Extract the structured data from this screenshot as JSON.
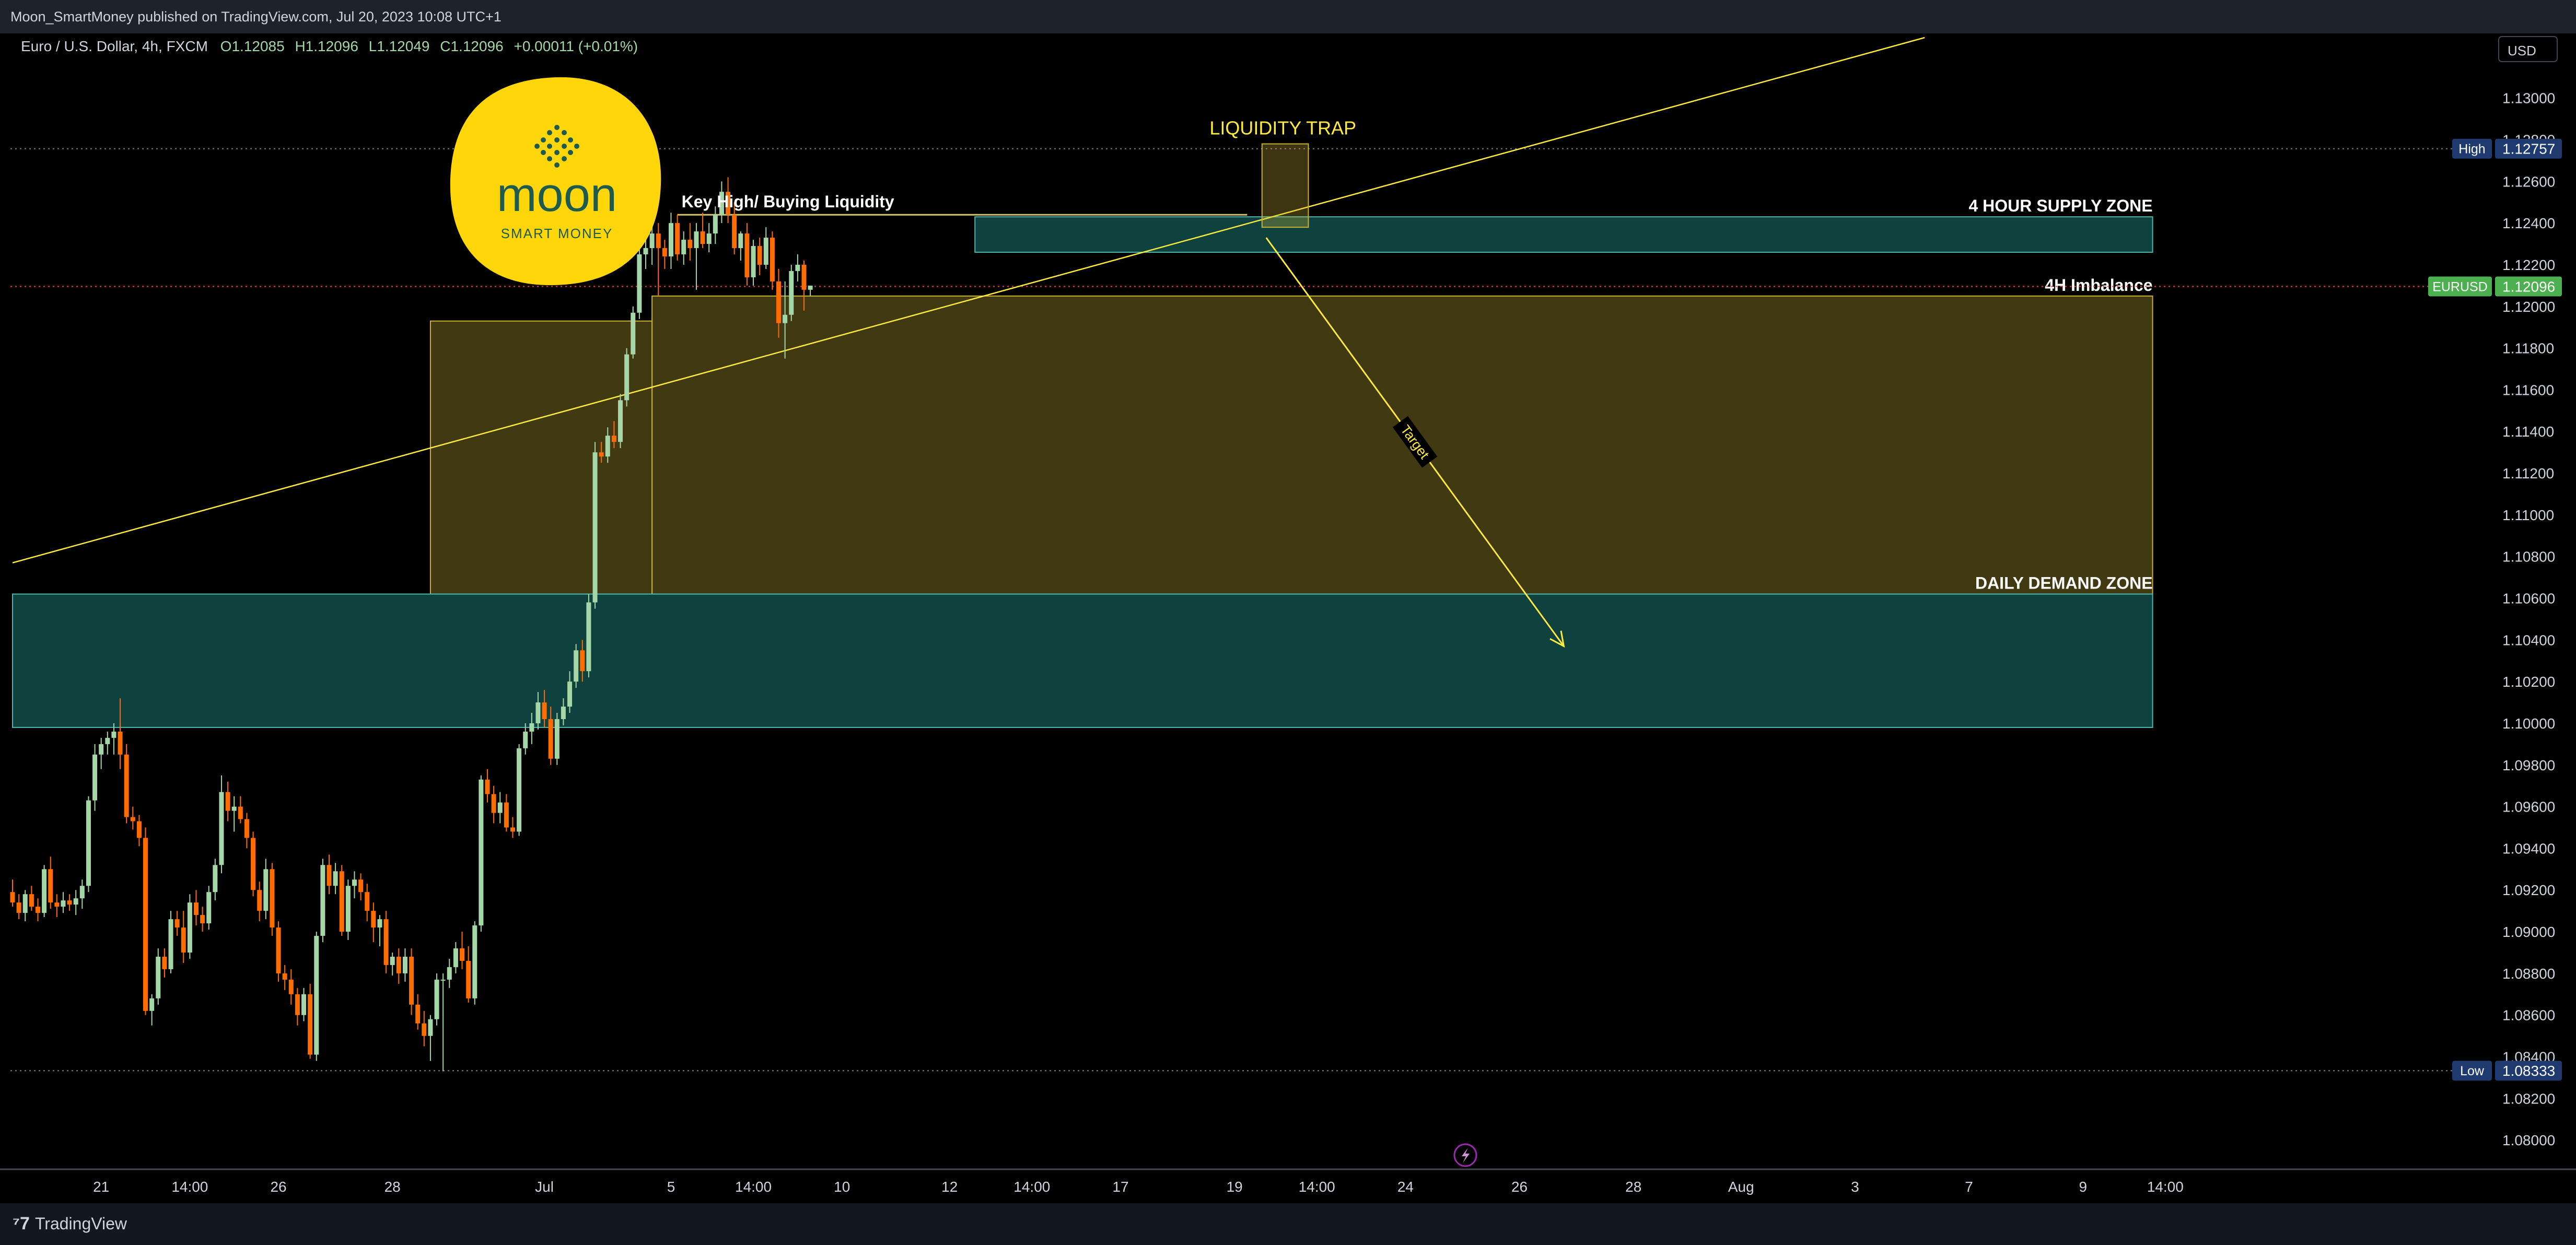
{
  "header": {
    "publisher_text": "Moon_SmartMoney published on TradingView.com, Jul 20, 2023 10:08 UTC+1"
  },
  "footer": {
    "brand": "TradingView",
    "brand_icon": "tradingview-logo-icon"
  },
  "logo": {
    "word": "moon",
    "tagline": "SMART MONEY",
    "background": "#ffd60a",
    "text_color": "#1f5a4f"
  },
  "colors": {
    "bull_candle": "#a5d6a7",
    "bear_candle": "#ff6d00",
    "supply_zone": "#26a69a",
    "demand_zone": "#26a69a",
    "imbalance_zone": "#c9b037",
    "annotation": "#ffeb3b"
  },
  "chart_data": {
    "type": "candlestick",
    "symbol_info": {
      "name": "Euro / U.S. Dollar, 4h, FXCM",
      "open": "O1.12085",
      "high": "H1.12096",
      "low": "L1.12049",
      "close": "C1.12096",
      "change": "+0.00011 (+0.01%)"
    },
    "currency": "USD",
    "y_ticks": [
      "1.13000",
      "1.12800",
      "1.12600",
      "1.12400",
      "1.12200",
      "1.12000",
      "1.11800",
      "1.11600",
      "1.11400",
      "1.11200",
      "1.11000",
      "1.10800",
      "1.10600",
      "1.10400",
      "1.10200",
      "1.10000",
      "1.09800",
      "1.09600",
      "1.09400",
      "1.09200",
      "1.09000",
      "1.08800",
      "1.08600",
      "1.08400",
      "1.08200",
      "1.08000"
    ],
    "y_tick_values": [
      1.13,
      1.128,
      1.126,
      1.124,
      1.122,
      1.12,
      1.118,
      1.116,
      1.114,
      1.112,
      1.11,
      1.108,
      1.106,
      1.104,
      1.102,
      1.1,
      1.098,
      1.096,
      1.094,
      1.092,
      1.09,
      1.088,
      1.086,
      1.084,
      1.082,
      1.08
    ],
    "ylim": [
      1.0786,
      1.1331
    ],
    "x_ticks": [
      {
        "label": "21",
        "i": 14
      },
      {
        "label": "14:00",
        "i": 28
      },
      {
        "label": "26",
        "i": 42
      },
      {
        "label": "28",
        "i": 60
      },
      {
        "label": "Jul",
        "i": 84
      },
      {
        "label": "5",
        "i": 104
      },
      {
        "label": "14:00",
        "i": 117
      },
      {
        "label": "10",
        "i": 131
      },
      {
        "label": "12",
        "i": 148
      },
      {
        "label": "14:00",
        "i": 161
      },
      {
        "label": "17",
        "i": 175
      },
      {
        "label": "19",
        "i": 193
      },
      {
        "label": "14:00",
        "i": 206
      },
      {
        "label": "24",
        "i": 220
      },
      {
        "label": "26",
        "i": 238
      },
      {
        "label": "28",
        "i": 256
      },
      {
        "label": "Aug",
        "i": 273
      },
      {
        "label": "3",
        "i": 291
      },
      {
        "label": "7",
        "i": 309
      },
      {
        "label": "9",
        "i": 327
      },
      {
        "label": "14:00",
        "i": 340
      }
    ],
    "candles": [
      [
        1.0919,
        1.0925,
        1.0912,
        1.0914
      ],
      [
        1.0914,
        1.0918,
        1.0906,
        1.0909
      ],
      [
        1.0909,
        1.092,
        1.0905,
        1.0918
      ],
      [
        1.0918,
        1.0922,
        1.091,
        1.0912
      ],
      [
        1.0912,
        1.0916,
        1.0905,
        1.0909
      ],
      [
        1.0909,
        1.0932,
        1.0907,
        1.093
      ],
      [
        1.093,
        1.0936,
        1.0911,
        1.0914
      ],
      [
        1.0914,
        1.0918,
        1.0907,
        1.0912
      ],
      [
        1.0912,
        1.0919,
        1.0909,
        1.0915
      ],
      [
        1.0915,
        1.0918,
        1.091,
        1.0913
      ],
      [
        1.0913,
        1.092,
        1.0908,
        1.0916
      ],
      [
        1.0916,
        1.0925,
        1.0911,
        1.0922
      ],
      [
        1.0922,
        1.0965,
        1.0919,
        1.0963
      ],
      [
        1.0963,
        1.099,
        1.0958,
        1.0985
      ],
      [
        1.0985,
        1.0993,
        1.0978,
        1.099
      ],
      [
        1.099,
        1.0996,
        1.0985,
        1.0993
      ],
      [
        1.0993,
        1.1,
        1.0985,
        1.0996
      ],
      [
        1.0996,
        1.1012,
        1.0978,
        1.0985
      ],
      [
        1.0985,
        1.099,
        1.0952,
        1.0955
      ],
      [
        1.0955,
        1.096,
        1.0949,
        1.0953
      ],
      [
        1.0953,
        1.0956,
        1.0941,
        1.0945
      ],
      [
        1.0945,
        1.095,
        1.086,
        1.0862
      ],
      [
        1.0862,
        1.087,
        1.0855,
        1.0868
      ],
      [
        1.0868,
        1.0892,
        1.0865,
        1.0888
      ],
      [
        1.0888,
        1.0892,
        1.0878,
        1.0882
      ],
      [
        1.0882,
        1.091,
        1.088,
        1.0906
      ],
      [
        1.0906,
        1.091,
        1.0898,
        1.0902
      ],
      [
        1.0902,
        1.091,
        1.0885,
        1.089
      ],
      [
        1.089,
        1.0918,
        1.0887,
        1.0914
      ],
      [
        1.0914,
        1.092,
        1.0903,
        1.0908
      ],
      [
        1.0908,
        1.0912,
        1.09,
        1.0904
      ],
      [
        1.0904,
        1.0922,
        1.0901,
        1.0919
      ],
      [
        1.0919,
        1.0935,
        1.0915,
        1.0932
      ],
      [
        1.0932,
        1.0975,
        1.0928,
        1.0967
      ],
      [
        1.0967,
        1.0972,
        1.0953,
        1.0958
      ],
      [
        1.0958,
        1.0965,
        1.0948,
        1.096
      ],
      [
        1.096,
        1.0965,
        1.0952,
        1.0954
      ],
      [
        1.0954,
        1.0957,
        1.094,
        1.0945
      ],
      [
        1.0945,
        1.0948,
        1.0917,
        1.092
      ],
      [
        1.092,
        1.0924,
        1.0905,
        1.091
      ],
      [
        1.091,
        1.0935,
        1.0906,
        1.093
      ],
      [
        1.093,
        1.0933,
        1.0898,
        1.0902
      ],
      [
        1.0902,
        1.0905,
        1.0876,
        1.088
      ],
      [
        1.088,
        1.0884,
        1.0872,
        1.0877
      ],
      [
        1.0877,
        1.0882,
        1.0865,
        1.087
      ],
      [
        1.087,
        1.0873,
        1.0855,
        1.086
      ],
      [
        1.086,
        1.0873,
        1.0857,
        1.087
      ],
      [
        1.087,
        1.0875,
        1.0839,
        1.0841
      ],
      [
        1.0841,
        1.09,
        1.0838,
        1.0898
      ],
      [
        1.0898,
        1.0935,
        1.0895,
        1.0932
      ],
      [
        1.0932,
        1.0937,
        1.0918,
        1.0922
      ],
      [
        1.0922,
        1.0933,
        1.0918,
        1.0929
      ],
      [
        1.0929,
        1.0932,
        1.0898,
        1.09
      ],
      [
        1.09,
        1.0925,
        1.0896,
        1.0922
      ],
      [
        1.0922,
        1.0929,
        1.0916,
        1.0925
      ],
      [
        1.0925,
        1.0928,
        1.0915,
        1.0919
      ],
      [
        1.0919,
        1.0923,
        1.0905,
        1.091
      ],
      [
        1.091,
        1.0914,
        1.0895,
        1.0902
      ],
      [
        1.0902,
        1.0908,
        1.0893,
        1.0906
      ],
      [
        1.0906,
        1.091,
        1.088,
        1.0884
      ],
      [
        1.0884,
        1.089,
        1.0879,
        1.0888
      ],
      [
        1.0888,
        1.0892,
        1.0875,
        1.088
      ],
      [
        1.088,
        1.0892,
        1.0876,
        1.0888
      ],
      [
        1.0888,
        1.0892,
        1.086,
        1.0865
      ],
      [
        1.0865,
        1.087,
        1.0853,
        1.0856
      ],
      [
        1.0856,
        1.0862,
        1.0845,
        1.085
      ],
      [
        1.085,
        1.086,
        1.0838,
        1.0858
      ],
      [
        1.0858,
        1.088,
        1.0855,
        1.0877
      ],
      [
        1.0877,
        1.088,
        1.0833,
        1.0877
      ],
      [
        1.0877,
        1.0887,
        1.0873,
        1.0883
      ],
      [
        1.0883,
        1.0895,
        1.088,
        1.0892
      ],
      [
        1.0892,
        1.09,
        1.0882,
        1.0886
      ],
      [
        1.0886,
        1.0893,
        1.0866,
        1.0868
      ],
      [
        1.0868,
        1.0905,
        1.0865,
        1.0903
      ],
      [
        1.0903,
        1.0975,
        1.09,
        1.0973
      ],
      [
        1.0973,
        1.0978,
        1.0962,
        1.0966
      ],
      [
        1.0966,
        1.097,
        1.0952,
        1.0957
      ],
      [
        1.0957,
        1.0967,
        1.0952,
        1.0962
      ],
      [
        1.0962,
        1.0966,
        1.0948,
        1.095
      ],
      [
        1.095,
        1.0955,
        1.0945,
        1.0948
      ],
      [
        1.0948,
        1.099,
        1.0946,
        1.0988
      ],
      [
        1.0988,
        1.1,
        1.0985,
        1.0996
      ],
      [
        1.0996,
        1.1005,
        1.099,
        1.1
      ],
      [
        1.1,
        1.1015,
        1.0997,
        1.101
      ],
      [
        1.101,
        1.1016,
        1.0998,
        1.1002
      ],
      [
        1.1002,
        1.1008,
        1.098,
        1.0983
      ],
      [
        1.0983,
        1.1005,
        1.098,
        1.1002
      ],
      [
        1.1002,
        1.1012,
        1.0999,
        1.1008
      ],
      [
        1.1008,
        1.1025,
        1.1005,
        1.102
      ],
      [
        1.102,
        1.1038,
        1.1017,
        1.1035
      ],
      [
        1.1035,
        1.104,
        1.102,
        1.1025
      ],
      [
        1.1025,
        1.1062,
        1.1022,
        1.1058
      ],
      [
        1.1058,
        1.1135,
        1.1055,
        1.113
      ],
      [
        1.113,
        1.1135,
        1.1125,
        1.1128
      ],
      [
        1.1128,
        1.1142,
        1.1125,
        1.1138
      ],
      [
        1.1138,
        1.1145,
        1.1132,
        1.1135
      ],
      [
        1.1135,
        1.1158,
        1.1132,
        1.1155
      ],
      [
        1.1155,
        1.118,
        1.1152,
        1.1177
      ],
      [
        1.1177,
        1.12,
        1.1175,
        1.1197
      ],
      [
        1.1197,
        1.123,
        1.1194,
        1.1225
      ],
      [
        1.1225,
        1.1232,
        1.1218,
        1.1228
      ],
      [
        1.1228,
        1.124,
        1.122,
        1.1235
      ],
      [
        1.1235,
        1.124,
        1.1205,
        1.1228
      ],
      [
        1.1228,
        1.1232,
        1.1218,
        1.1224
      ],
      [
        1.1224,
        1.1245,
        1.1218,
        1.124
      ],
      [
        1.124,
        1.1244,
        1.1222,
        1.1225
      ],
      [
        1.1225,
        1.1236,
        1.122,
        1.1232
      ],
      [
        1.1232,
        1.124,
        1.1222,
        1.1228
      ],
      [
        1.1228,
        1.124,
        1.1208,
        1.1236
      ],
      [
        1.1236,
        1.1245,
        1.1228,
        1.123
      ],
      [
        1.123,
        1.124,
        1.1226,
        1.1235
      ],
      [
        1.1235,
        1.1248,
        1.123,
        1.1244
      ],
      [
        1.1244,
        1.126,
        1.124,
        1.1255
      ],
      [
        1.1255,
        1.1262,
        1.124,
        1.1244
      ],
      [
        1.1244,
        1.125,
        1.1225,
        1.1228
      ],
      [
        1.1228,
        1.1236,
        1.1222,
        1.1235
      ],
      [
        1.1235,
        1.124,
        1.121,
        1.1214
      ],
      [
        1.1214,
        1.1232,
        1.121,
        1.1229
      ],
      [
        1.1229,
        1.1233,
        1.1215,
        1.122
      ],
      [
        1.122,
        1.1238,
        1.1218,
        1.1233
      ],
      [
        1.1233,
        1.1236,
        1.1208,
        1.1212
      ],
      [
        1.1212,
        1.1218,
        1.1185,
        1.1192
      ],
      [
        1.1192,
        1.1212,
        1.1175,
        1.1196
      ],
      [
        1.1196,
        1.122,
        1.1193,
        1.1217
      ],
      [
        1.1217,
        1.1225,
        1.1212,
        1.122
      ],
      [
        1.122,
        1.1222,
        1.1198,
        1.1208
      ],
      [
        1.1208,
        1.121,
        1.1205,
        1.121
      ]
    ],
    "price_labels": [
      {
        "tag": "High",
        "value": "1.12757",
        "y": 1.12757,
        "color": "#1e3a6e"
      },
      {
        "tag": "EURUSD",
        "value": "1.12096",
        "y": 1.12096,
        "color": "#4caf50"
      },
      {
        "tag": "Low",
        "value": "1.08333",
        "y": 1.08333,
        "color": "#1e3a6e"
      }
    ],
    "zones": [
      {
        "name": "4 HOUR SUPPLY ZONE",
        "label": "4 HOUR SUPPLY ZONE",
        "i1": 152,
        "i2": 338,
        "y1": 1.1243,
        "y2": 1.1226,
        "kind": "supply"
      },
      {
        "name": "4H Imbalance",
        "label": "4H Imbalance",
        "i1": 101,
        "i2": 338,
        "y1": 1.1205,
        "y2": 1.1062,
        "kind": "imbalance"
      },
      {
        "name": "imbalance-step",
        "label": "",
        "i1": 66,
        "i2": 101,
        "y1": 1.1193,
        "y2": 1.1062,
        "kind": "imbalance"
      },
      {
        "name": "DAILY DEMAND ZONE",
        "label": "DAILY DEMAND ZONE",
        "i1": 0,
        "i2": 338,
        "y1": 1.1062,
        "y2": 1.0998,
        "kind": "demand"
      }
    ],
    "annotations": {
      "liquidity_trap_label": "LIQUIDITY TRAP",
      "key_high_label": "Key High/ Buying Liquidity",
      "target_label": "Target",
      "key_high_y": 1.1244,
      "key_high_i1": 105,
      "key_high_i2": 195,
      "trap_box": {
        "i1": 198,
        "i2": 204,
        "y1": 1.1278,
        "y2": 1.1238
      },
      "trend_line": {
        "i1": 0,
        "y1": 1.1077,
        "i2": 302,
        "y2": 1.1329
      },
      "target_arrow": {
        "i1": 198,
        "y1": 1.1233,
        "i2": 245,
        "y2": 1.1037
      }
    }
  }
}
